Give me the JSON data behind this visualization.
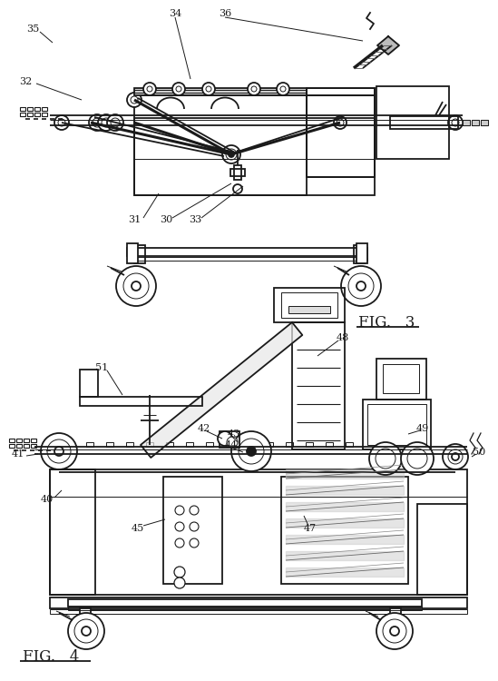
{
  "bg_color": "#ffffff",
  "lc": "#1a1a1a",
  "lw_main": 1.3,
  "lw_thin": 0.7,
  "lw_thick": 2.2
}
